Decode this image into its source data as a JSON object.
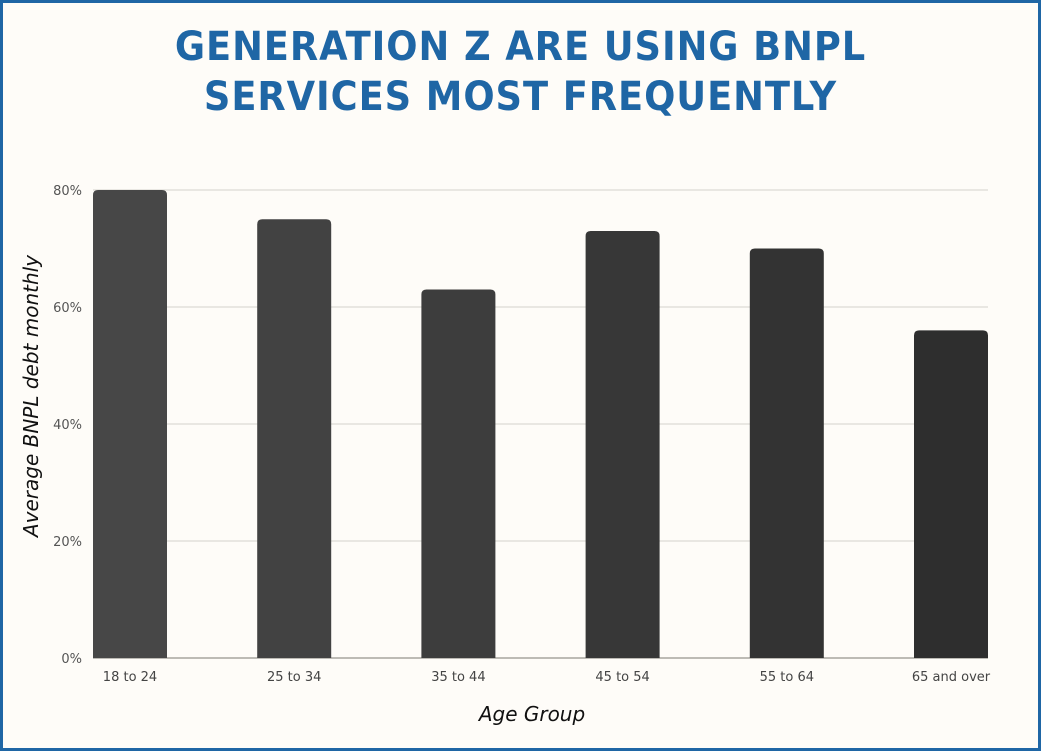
{
  "title_lines": [
    "GENERATION Z ARE USING BNPL",
    "SERVICES MOST FREQUENTLY"
  ],
  "colors": {
    "title": "#1f66a5",
    "border": "#1f66a5",
    "background": "#fefcf8",
    "grid": "#d4d2cc",
    "bars": [
      "#474747",
      "#424242",
      "#3d3d3d",
      "#373737",
      "#333333",
      "#2e2e2e"
    ]
  },
  "chart_data": {
    "type": "bar",
    "title": "GENERATION Z ARE USING BNPL SERVICES MOST FREQUENTLY",
    "xlabel": "Age Group",
    "ylabel": "Average BNPL debt monthly",
    "categories": [
      "18 to 24",
      "25 to 34",
      "35 to 44",
      "45 to 54",
      "55 to 64",
      "65 and over"
    ],
    "values": [
      80,
      75,
      63,
      73,
      70,
      56
    ],
    "ylim": [
      0,
      80
    ],
    "yticks": [
      0,
      20,
      40,
      60,
      80
    ],
    "ytick_labels": [
      "0%",
      "20%",
      "40%",
      "60%",
      "80%"
    ],
    "grid": true,
    "legend": "none"
  }
}
